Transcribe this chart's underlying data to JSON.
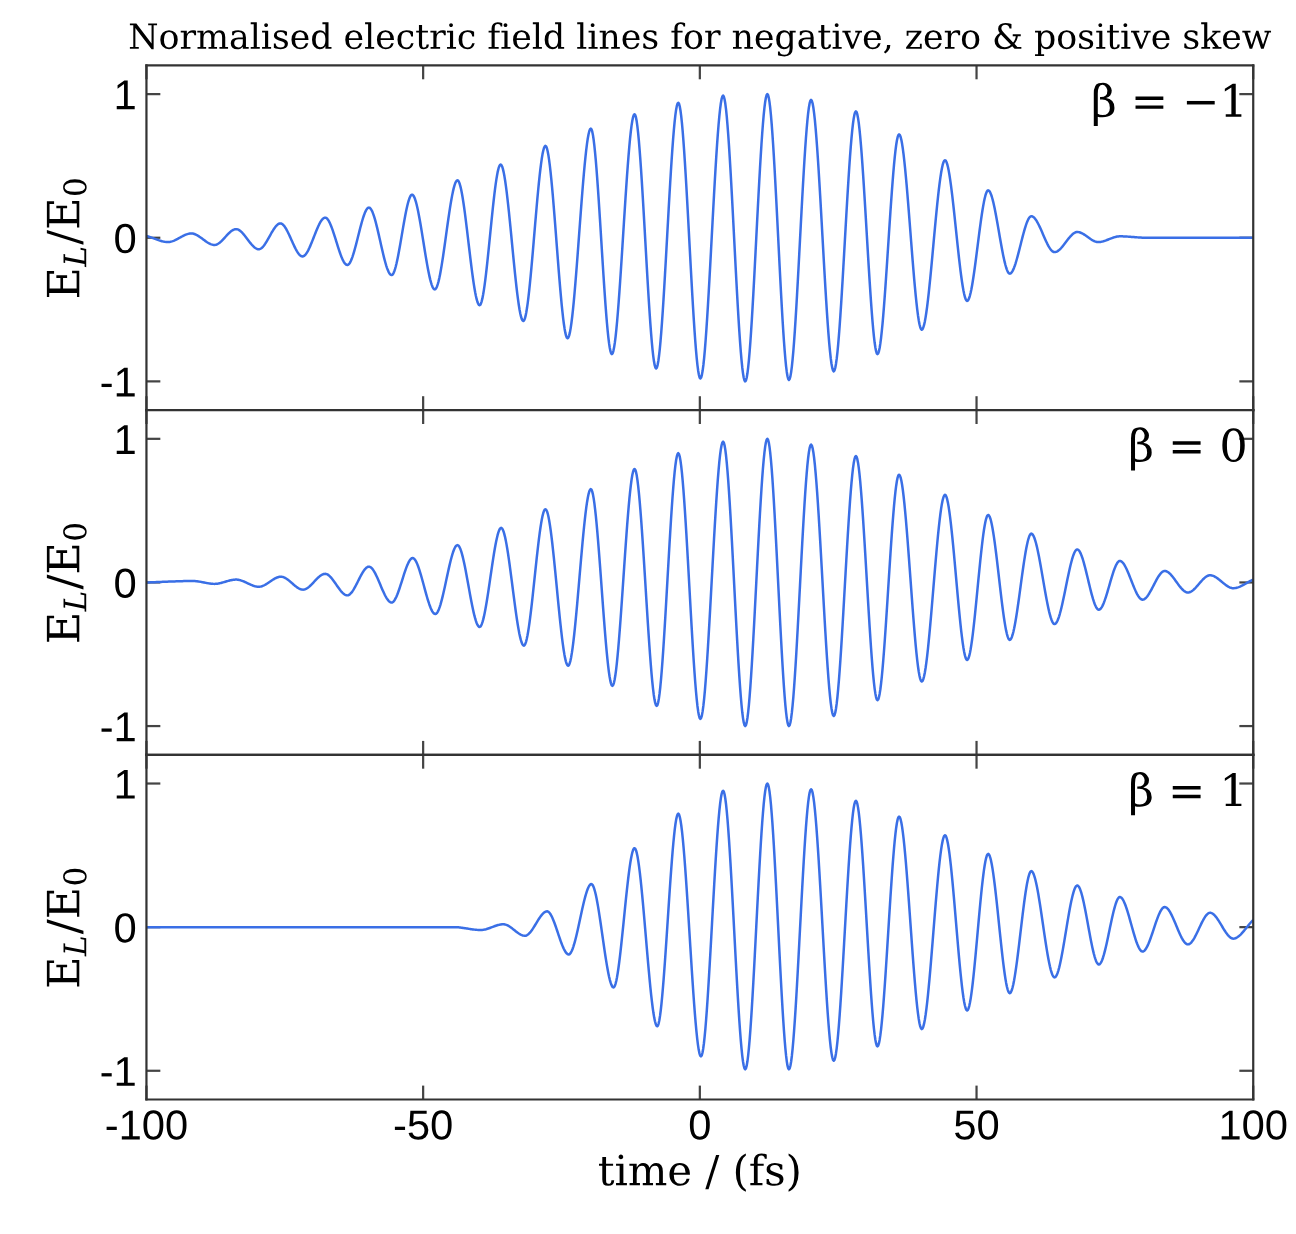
{
  "chart_data": [
    {
      "type": "line",
      "title": "Normalised electric field lines for negative, zero & positive skew",
      "ylabel": "E$_{L}$/E$_{0}$",
      "annotations": [
        "β = −1"
      ],
      "xlim": [
        -100,
        100
      ],
      "xticks": [
        -100,
        -50,
        0,
        50,
        100
      ],
      "ylim": [
        -1.2,
        1.2
      ],
      "yticks": [
        -1,
        0,
        1
      ],
      "tick_labels": "y",
      "grid": false,
      "legend": false,
      "series": [
        {
          "color": "#3a6fe6",
          "x": [
            -99.8,
            -96.1,
            -91.9,
            -87.7,
            -83.8,
            -79.7,
            -75.8,
            -71.8,
            -67.7,
            -63.7,
            -59.8,
            -55.7,
            -52.0,
            -47.9,
            -43.8,
            -39.8,
            -36.0,
            -31.9,
            -27.9,
            -23.9,
            -19.7,
            -15.9,
            -11.8,
            -7.9,
            -3.9,
            0.1,
            4.2,
            8.2,
            12.2,
            16.1,
            20.1,
            24.2,
            28.2,
            32.1,
            36.0,
            40.1,
            44.3,
            48.3,
            52.1,
            56.0,
            59.9,
            64.1,
            68.2,
            72.0,
            75.9,
            80.7,
            100
          ],
          "values": [
            0.01,
            -0.03,
            0.03,
            -0.05,
            0.06,
            -0.08,
            0.1,
            -0.13,
            0.14,
            -0.19,
            0.21,
            -0.26,
            0.3,
            -0.36,
            0.4,
            -0.47,
            0.51,
            -0.58,
            0.64,
            -0.7,
            0.76,
            -0.81,
            0.86,
            -0.91,
            0.94,
            -0.98,
            0.99,
            -1.0,
            1.0,
            -0.99,
            0.96,
            -0.93,
            0.88,
            -0.81,
            0.72,
            -0.64,
            0.54,
            -0.44,
            0.33,
            -0.25,
            0.15,
            -0.1,
            0.04,
            -0.03,
            0.01,
            0,
            0
          ]
        }
      ]
    },
    {
      "type": "line",
      "ylabel": "E$_{L}$/E$_{0}$",
      "annotations": [
        "β = 0"
      ],
      "xlim": [
        -100,
        100
      ],
      "xticks": [
        -100,
        -50,
        0,
        50,
        100
      ],
      "ylim": [
        -1.2,
        1.2
      ],
      "yticks": [
        -1,
        0,
        1
      ],
      "tick_labels": "y",
      "grid": false,
      "legend": false,
      "series": [
        {
          "color": "#3a6fe6",
          "x": [
            -99.8,
            -91.6,
            -87.7,
            -83.8,
            -79.7,
            -75.7,
            -71.7,
            -67.7,
            -63.7,
            -59.8,
            -55.7,
            -51.9,
            -47.8,
            -43.8,
            -39.8,
            -35.9,
            -31.8,
            -27.9,
            -23.8,
            -19.7,
            -15.8,
            -11.8,
            -7.8,
            -3.9,
            0.1,
            4.2,
            8.2,
            12.2,
            16.1,
            20.1,
            24.2,
            28.2,
            32.1,
            36.0,
            40.1,
            44.3,
            48.3,
            52.1,
            56.0,
            59.9,
            64.1,
            68.2,
            72.1,
            75.9,
            80.0,
            84.0,
            88.2,
            92.2,
            96.4,
            100
          ],
          "values": [
            0,
            0.01,
            -0.01,
            0.02,
            -0.03,
            0.04,
            -0.05,
            0.06,
            -0.09,
            0.11,
            -0.14,
            0.17,
            -0.22,
            0.26,
            -0.31,
            0.38,
            -0.44,
            0.51,
            -0.58,
            0.65,
            -0.72,
            0.79,
            -0.86,
            0.9,
            -0.95,
            0.98,
            -1.0,
            1.0,
            -1.0,
            0.96,
            -0.93,
            0.88,
            -0.82,
            0.75,
            -0.69,
            0.61,
            -0.54,
            0.47,
            -0.4,
            0.34,
            -0.29,
            0.23,
            -0.19,
            0.15,
            -0.12,
            0.08,
            -0.07,
            0.05,
            -0.04,
            0.02
          ]
        }
      ]
    },
    {
      "type": "line",
      "xlabel": "time / (fs)",
      "ylabel": "E$_{L}$/E$_{0}$",
      "annotations": [
        "β = 1"
      ],
      "xlim": [
        -100,
        100
      ],
      "xticks": [
        -100,
        -50,
        0,
        50,
        100
      ],
      "ylim": [
        -1.2,
        1.2
      ],
      "yticks": [
        -1,
        0,
        1
      ],
      "grid": false,
      "legend": false,
      "series": [
        {
          "color": "#3a6fe6",
          "x": [
            -100,
            -44.4,
            -39.6,
            -35.5,
            -31.6,
            -27.6,
            -23.7,
            -19.6,
            -15.6,
            -11.8,
            -7.7,
            -3.9,
            0.2,
            4.2,
            8.2,
            12.2,
            16.1,
            20.1,
            24.2,
            28.2,
            32.1,
            36.0,
            40.1,
            44.3,
            48.3,
            52.1,
            56.0,
            59.9,
            64.1,
            68.2,
            72.1,
            75.9,
            80.0,
            84.0,
            88.2,
            92.2,
            96.4,
            100
          ],
          "values": [
            0,
            0,
            -0.02,
            0.02,
            -0.06,
            0.11,
            -0.19,
            0.3,
            -0.42,
            0.55,
            -0.69,
            0.79,
            -0.9,
            0.95,
            -0.99,
            1.0,
            -0.99,
            0.96,
            -0.93,
            0.88,
            -0.83,
            0.77,
            -0.71,
            0.64,
            -0.58,
            0.51,
            -0.46,
            0.39,
            -0.35,
            0.29,
            -0.26,
            0.21,
            -0.17,
            0.14,
            -0.12,
            0.1,
            -0.08,
            0.05
          ]
        }
      ]
    }
  ]
}
